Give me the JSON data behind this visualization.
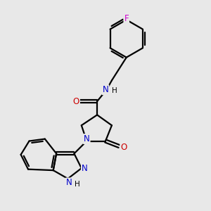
{
  "background_color": "#e8e8e8",
  "bond_color": "#000000",
  "nitrogen_color": "#0000cc",
  "oxygen_color": "#cc0000",
  "fluorine_color": "#cc00cc",
  "line_width": 1.6,
  "figsize": [
    3.0,
    3.0
  ],
  "dpi": 100,
  "xlim": [
    0,
    10
  ],
  "ylim": [
    0,
    10
  ],
  "font_size_atom": 8.5,
  "font_size_H": 7.5
}
